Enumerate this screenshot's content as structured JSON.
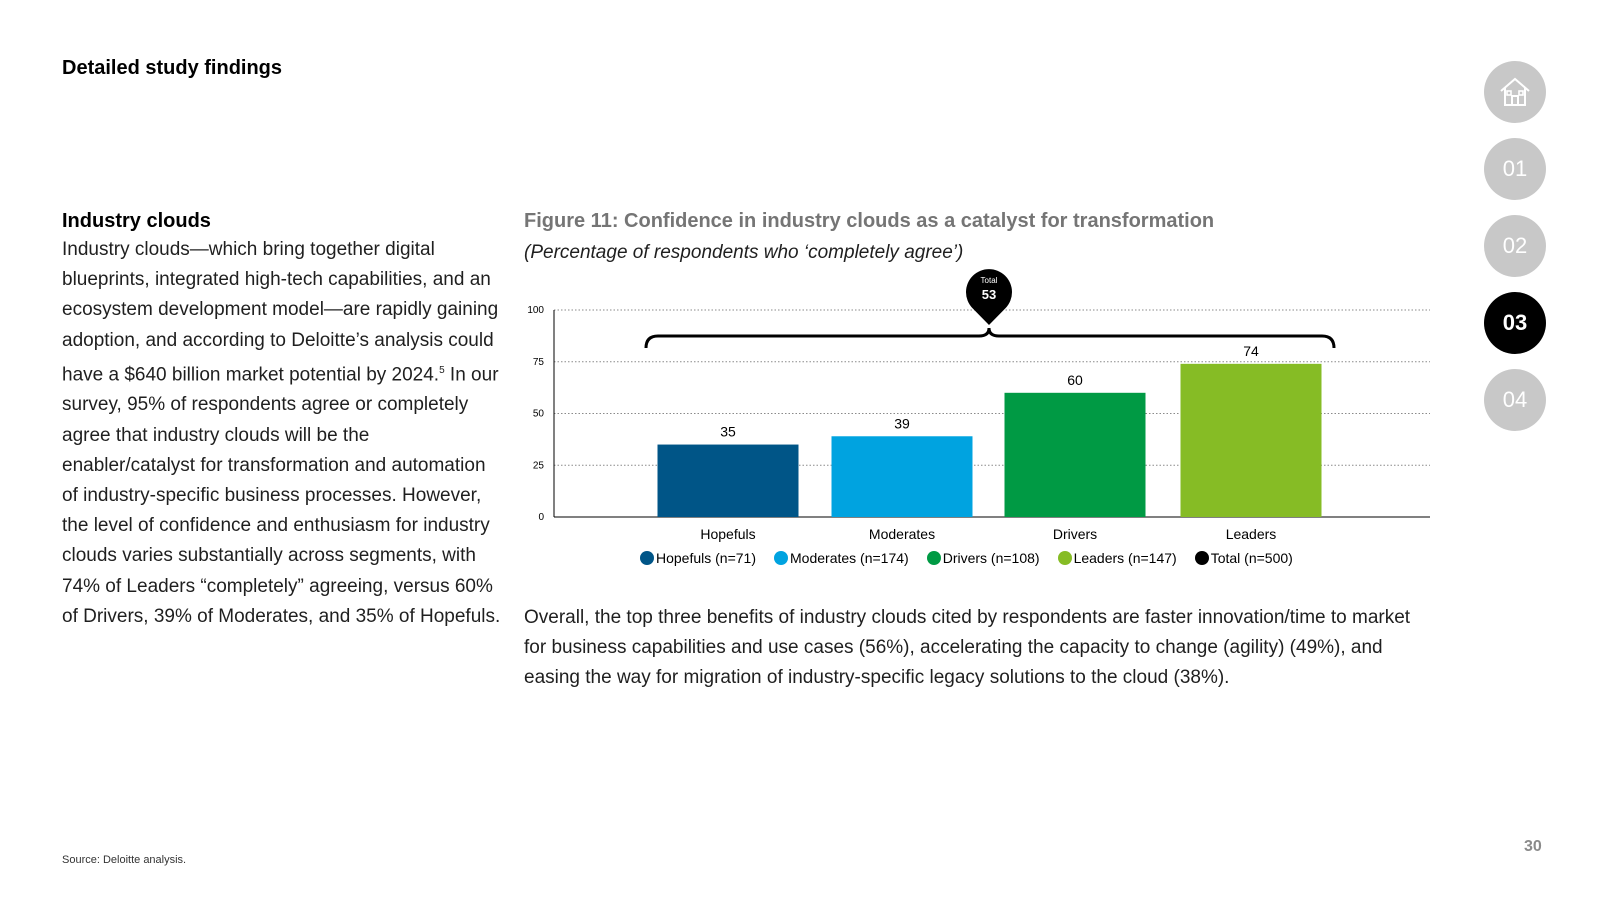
{
  "header": {
    "title": "Detailed study findings"
  },
  "left": {
    "heading": "Industry clouds",
    "body_before_sup": "Industry clouds—which bring together digital blueprints, integrated high-tech capabilities, and an ecosystem development model—are rapidly gaining adoption, and according to Deloitte’s analysis could have a $640 billion market potential by 2024.",
    "sup": "5",
    "body_after_sup": " In our survey, 95% of respondents agree or completely agree that industry clouds will be the enabler/catalyst for transformation and automation of industry-specific business processes. However, the level of confidence and enthusiasm for industry clouds varies substantially across segments, with 74% of Leaders “completely” agreeing, versus 60% of Drivers, 39% of Moderates, and 35% of Hopefuls."
  },
  "figure": {
    "title": "Figure 11: Confidence in industry clouds as a catalyst for transformation",
    "subtitle": "(Percentage of respondents who ‘completely agree’)"
  },
  "chart_data": {
    "type": "bar",
    "categories": [
      "Hopefuls",
      "Moderates",
      "Drivers",
      "Leaders"
    ],
    "values": [
      35,
      39,
      60,
      74
    ],
    "colors": [
      "#005587",
      "#00A3E0",
      "#009A44",
      "#86BC25"
    ],
    "ylim": [
      0,
      100
    ],
    "yticks": [
      0,
      25,
      50,
      75,
      100
    ],
    "grid": true,
    "total": {
      "label": "Total",
      "value": 53,
      "color": "#000000"
    },
    "legend": [
      {
        "label": "Hopefuls (n=71)",
        "color": "#005587"
      },
      {
        "label": "Moderates (n=174)",
        "color": "#00A3E0"
      },
      {
        "label": "Drivers (n=108)",
        "color": "#009A44"
      },
      {
        "label": "Leaders (n=147)",
        "color": "#86BC25"
      },
      {
        "label": "Total  (n=500)",
        "color": "#000000"
      }
    ]
  },
  "bottom_paragraph": "Overall, the top three benefits of industry clouds cited by respondents are faster innovation/time to market for business capabilities and use cases (56%), accelerating the capacity to change (agility) (49%), and easing the way for migration of industry-specific legacy solutions to the cloud (38%).",
  "source": "Source: Deloitte analysis.",
  "page_number": "30",
  "nav": {
    "items": [
      {
        "label": "",
        "icon": "home-icon"
      },
      {
        "label": "01"
      },
      {
        "label": "02"
      },
      {
        "label": "03",
        "active": true
      },
      {
        "label": "04"
      }
    ]
  }
}
